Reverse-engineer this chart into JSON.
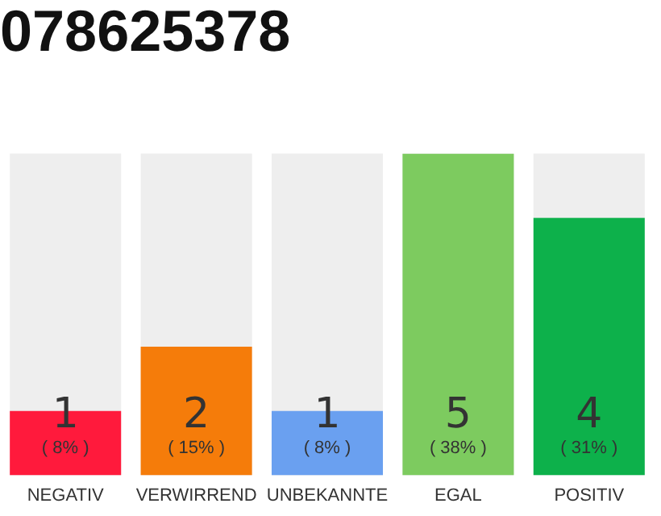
{
  "chart_data": {
    "type": "bar",
    "title": "078625378",
    "categories": [
      "NEGATIV",
      "VERWIRREND",
      "UNBEKANNTE",
      "EGAL",
      "POSITIV"
    ],
    "values": [
      1,
      2,
      1,
      5,
      4
    ],
    "colors": [
      "#ff1a3c",
      "#f57c0a",
      "#6aa0f0",
      "#7dcb5f",
      "#0db14b"
    ],
    "ylim": [
      0,
      5
    ],
    "data_labels": true,
    "grid": false,
    "legend": false,
    "annotations": [
      "( 8% )",
      "( 15% )",
      "( 8% )",
      "( 38% )",
      "( 31% )"
    ]
  }
}
